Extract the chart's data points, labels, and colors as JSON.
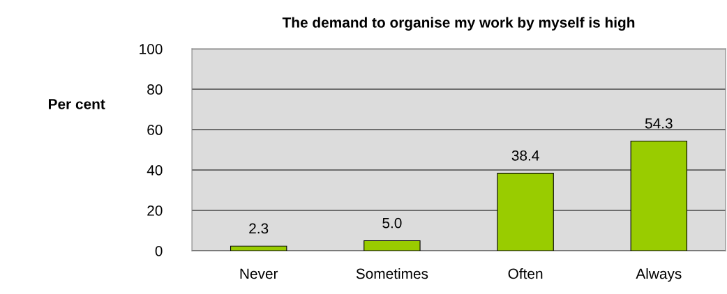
{
  "chart_data": {
    "type": "bar",
    "title": "The demand to organise my work by myself is high",
    "ylabel": "Per cent",
    "categories": [
      "Never",
      "Sometimes",
      "Often",
      "Always"
    ],
    "values": [
      2.3,
      5.0,
      38.4,
      54.3
    ],
    "color": "#99cc00",
    "value_labels": [
      "2.3",
      "5.0",
      "38.4",
      "54.3"
    ],
    "ylim": [
      0,
      100
    ],
    "yticks": [
      0,
      20,
      40,
      60,
      80,
      100
    ],
    "grid": "y",
    "legend": false
  }
}
